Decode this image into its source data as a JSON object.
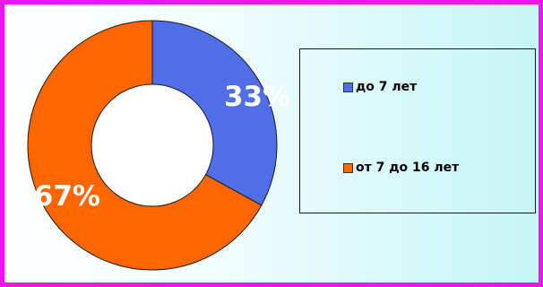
{
  "chart_data": {
    "type": "pie",
    "donut": true,
    "slices": [
      {
        "label": "до 7 лет",
        "value": 33,
        "display": "33%",
        "color": "#4f6ee8"
      },
      {
        "label": "от 7 до 16 лет",
        "value": 67,
        "display": "67%",
        "color": "#ff6600"
      }
    ],
    "legend": {
      "placement": "right",
      "boxed": true
    }
  },
  "colors": {
    "frame_border": "#ee18e6",
    "background_gradient_end": "#c5f5f6",
    "slice_outline": "#1a1a1a"
  }
}
